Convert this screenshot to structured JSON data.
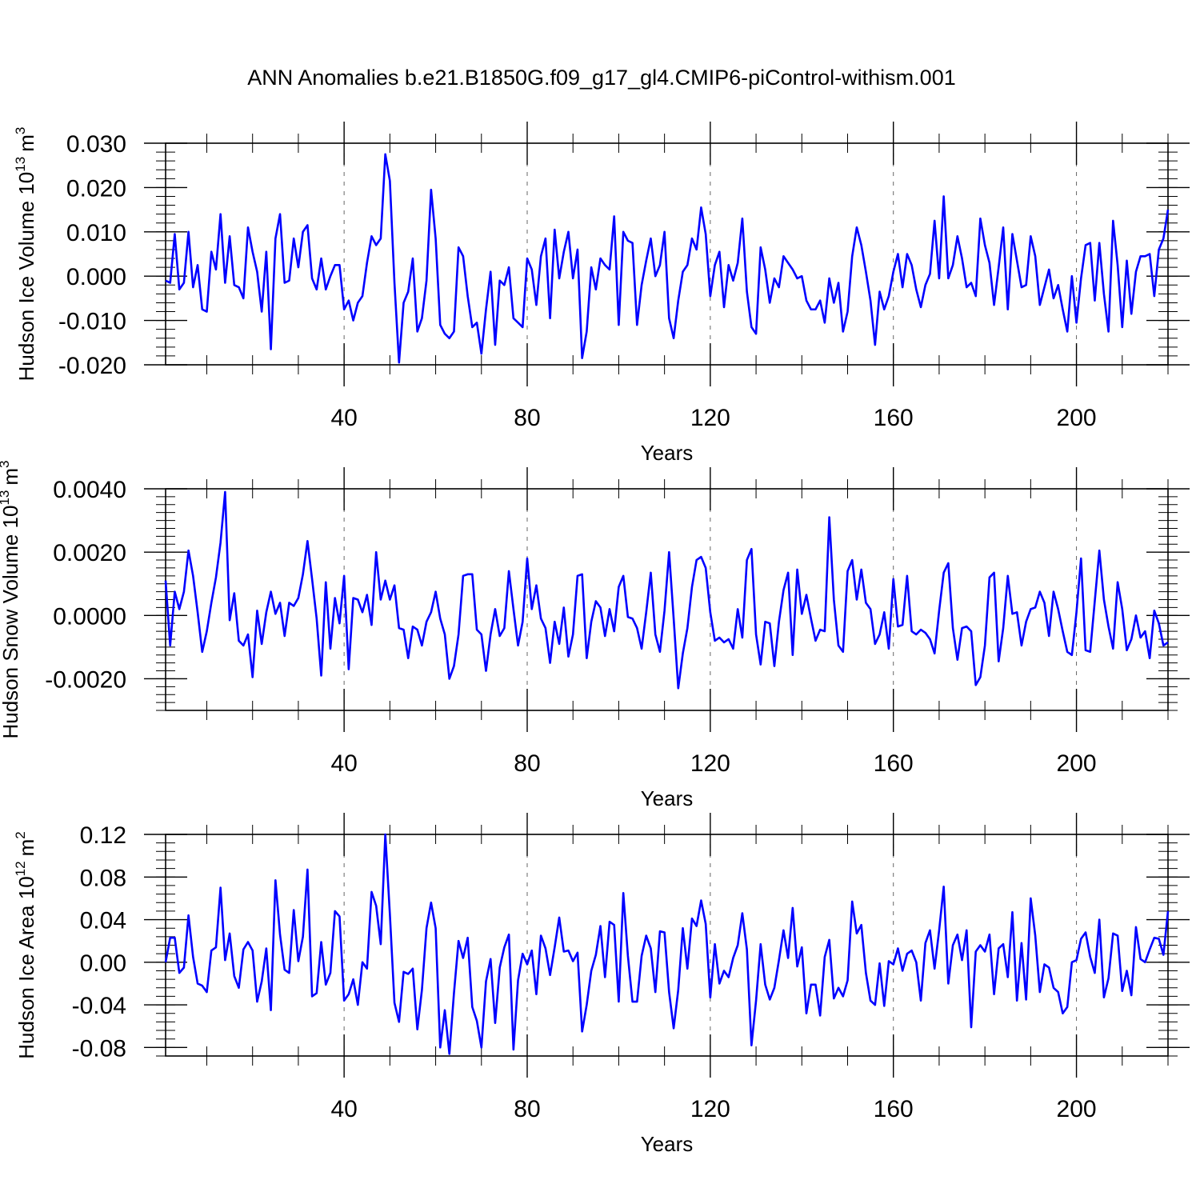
{
  "title": "ANN Anomalies b.e21.B1850G.f09_g17_gl4.CMIP6-piControl-withism.001",
  "line_color": "#0000ff",
  "chart_data": [
    {
      "type": "line",
      "ylabel_main": "Hudson Ice Volume 10",
      "ylabel_exp": "13",
      "ylabel_unit": "m",
      "ylabel_unit_exp": "3",
      "xlabel": "Years",
      "xlim": [
        1,
        220
      ],
      "ylim": [
        -0.02,
        0.03
      ],
      "yticks": [
        -0.02,
        -0.01,
        0.0,
        0.01,
        0.02,
        0.03
      ],
      "ytick_labels": [
        "-0.020",
        "-0.010",
        "0.000",
        "0.010",
        "0.020",
        "0.030"
      ],
      "yminor": 0.002,
      "xticks": [
        40,
        80,
        120,
        160,
        200
      ],
      "xtick_labels": [
        "40",
        "80",
        "120",
        "160",
        "200"
      ],
      "x_start": 1,
      "values": [
        -0.001,
        -0.0015,
        0.0095,
        -0.003,
        -0.0015,
        0.01,
        -0.0025,
        0.0025,
        -0.0075,
        -0.008,
        0.0055,
        0.0015,
        0.014,
        -0.0015,
        0.009,
        -0.002,
        -0.0025,
        -0.005,
        0.011,
        0.0055,
        0.001,
        -0.008,
        0.0055,
        -0.0165,
        0.0085,
        0.014,
        -0.0015,
        -0.001,
        0.0085,
        0.002,
        0.01,
        0.0115,
        -0.0005,
        -0.003,
        0.004,
        -0.003,
        0.0,
        0.0025,
        0.0025,
        -0.0075,
        -0.0055,
        -0.01,
        -0.006,
        -0.0045,
        0.003,
        0.009,
        0.007,
        0.0085,
        0.0275,
        0.0215,
        -0.0015,
        -0.0195,
        -0.006,
        -0.0035,
        0.004,
        -0.0125,
        -0.0095,
        -0.001,
        0.0195,
        0.0085,
        -0.011,
        -0.013,
        -0.014,
        -0.0125,
        0.0065,
        0.0045,
        -0.0045,
        -0.0115,
        -0.0105,
        -0.0175,
        -0.0075,
        0.001,
        -0.0155,
        -0.001,
        -0.002,
        0.002,
        -0.0095,
        -0.0105,
        -0.0115,
        0.004,
        0.0015,
        -0.0065,
        0.0045,
        0.0085,
        -0.0095,
        0.0105,
        -0.0005,
        0.0055,
        0.01,
        -0.0005,
        0.006,
        -0.0185,
        -0.0125,
        0.002,
        -0.003,
        0.004,
        0.0025,
        0.0015,
        0.0135,
        -0.011,
        0.01,
        0.008,
        0.0075,
        -0.011,
        -0.002,
        0.0035,
        0.0085,
        0.0,
        0.0025,
        0.01,
        -0.0095,
        -0.014,
        -0.0055,
        0.001,
        0.0025,
        0.0085,
        0.006,
        0.0155,
        0.0095,
        -0.0045,
        0.0025,
        0.0055,
        -0.007,
        0.0025,
        -0.001,
        0.003,
        0.013,
        -0.0035,
        -0.0115,
        -0.013,
        0.0065,
        0.0015,
        -0.006,
        -0.0005,
        -0.0025,
        0.0045,
        0.003,
        0.0015,
        -0.0005,
        0.0,
        -0.0055,
        -0.0075,
        -0.0075,
        -0.0055,
        -0.0105,
        -0.0005,
        -0.006,
        -0.0015,
        -0.0125,
        -0.008,
        0.0045,
        0.011,
        0.007,
        0.001,
        -0.0055,
        -0.0155,
        -0.0035,
        -0.0075,
        -0.0045,
        0.001,
        0.005,
        -0.0025,
        0.005,
        0.0025,
        -0.003,
        -0.007,
        -0.002,
        0.0005,
        0.0125,
        -0.0005,
        0.018,
        -0.0005,
        0.0025,
        0.009,
        0.004,
        -0.0025,
        -0.0015,
        -0.0045,
        0.013,
        0.007,
        0.003,
        -0.0065,
        0.002,
        0.011,
        -0.0075,
        0.0095,
        0.0035,
        -0.0025,
        -0.002,
        0.009,
        0.0045,
        -0.0065,
        -0.0025,
        0.0015,
        -0.005,
        -0.002,
        -0.0075,
        -0.0125,
        0.0,
        -0.0105,
        -0.0005,
        0.007,
        0.0075,
        -0.0055,
        0.0075,
        -0.004,
        -0.0125,
        0.0125,
        0.0025,
        -0.0115,
        0.0035,
        -0.0085,
        0.001,
        0.0045,
        0.0045,
        0.005,
        -0.0045,
        0.006,
        0.0085,
        0.015
      ]
    },
    {
      "type": "line",
      "ylabel_main": "Hudson Snow Volume 10",
      "ylabel_exp": "13",
      "ylabel_unit": "m",
      "ylabel_unit_exp": "3",
      "xlabel": "Years",
      "xlim": [
        1,
        220
      ],
      "ylim": [
        -0.003,
        0.004
      ],
      "yticks": [
        -0.002,
        0.0,
        0.002,
        0.004
      ],
      "ytick_labels": [
        "-0.0020",
        "0.0000",
        "0.0020",
        "0.0040"
      ],
      "yminor": 0.00025,
      "xticks": [
        40,
        80,
        120,
        160,
        200
      ],
      "xtick_labels": [
        "40",
        "80",
        "120",
        "160",
        "200"
      ],
      "x_start": 1,
      "values": [
        0.0011,
        -0.00095,
        0.00075,
        0.0002,
        0.00075,
        0.00205,
        0.00125,
        0.0001,
        -0.00115,
        -0.0005,
        0.0004,
        0.0012,
        0.0023,
        0.0039,
        -0.00015,
        0.0007,
        -0.0008,
        -0.00095,
        -0.0006,
        -0.00195,
        0.00015,
        -0.0009,
        0.0001,
        0.00075,
        5e-05,
        0.0004,
        -0.00065,
        0.0004,
        0.0003,
        0.00055,
        0.0013,
        0.00235,
        0.00115,
        -0.0001,
        -0.0019,
        0.00105,
        -0.00105,
        0.00055,
        -0.00025,
        0.00125,
        -0.0017,
        0.00055,
        0.0005,
        0.0001,
        0.00065,
        -0.0003,
        0.002,
        0.0005,
        0.0011,
        0.0005,
        0.00095,
        -0.0004,
        -0.00045,
        -0.00135,
        -0.00035,
        -0.00045,
        -0.00095,
        -0.0002,
        0.0001,
        0.00075,
        -0.0001,
        -0.0006,
        -0.002,
        -0.0016,
        -0.0006,
        0.00125,
        0.0013,
        0.0013,
        -0.00045,
        -0.0006,
        -0.00175,
        -0.0006,
        0.0002,
        -0.00065,
        -0.0004,
        0.0014,
        0.0002,
        -0.00095,
        -0.0002,
        0.0018,
        0.0002,
        0.00095,
        -0.0001,
        -0.0004,
        -0.0015,
        -0.0002,
        -0.0009,
        0.00025,
        -0.0013,
        -0.0006,
        0.00125,
        0.0013,
        -0.00135,
        -0.0002,
        0.00045,
        0.00025,
        -0.00065,
        0.0002,
        -0.0005,
        0.0009,
        0.00125,
        -5e-05,
        -0.0001,
        -0.0004,
        -0.00105,
        0.0001,
        0.00135,
        -0.0006,
        -0.00115,
        0.00015,
        0.002,
        -0.0001,
        -0.0023,
        -0.0012,
        -0.0004,
        0.0009,
        0.00175,
        0.00185,
        0.0015,
        0.0001,
        -0.0008,
        -0.0007,
        -0.00085,
        -0.00075,
        -0.00105,
        0.0002,
        -0.0007,
        0.00175,
        0.0021,
        -0.0006,
        -0.00155,
        -0.0002,
        -0.00025,
        -0.0016,
        -0.0002,
        0.0008,
        0.00135,
        -0.00125,
        0.00145,
        5e-05,
        0.00065,
        -0.0001,
        -0.0008,
        -0.00045,
        -0.0005,
        0.0031,
        0.0005,
        -0.00095,
        -0.00115,
        0.0014,
        0.00175,
        0.0005,
        0.00145,
        0.0004,
        0.0002,
        -0.0009,
        -0.0006,
        0.0001,
        -0.00105,
        0.00115,
        -0.00035,
        -0.0003,
        0.00125,
        -0.0005,
        -0.0006,
        -0.00045,
        -0.00055,
        -0.00075,
        -0.0012,
        0.00015,
        0.00135,
        0.00165,
        -0.0004,
        -0.0014,
        -0.0004,
        -0.00035,
        -0.0005,
        -0.0022,
        -0.00195,
        -0.00095,
        0.0012,
        0.00135,
        -0.00145,
        -0.0004,
        0.00125,
        5e-05,
        0.0001,
        -0.00095,
        -0.0002,
        0.0002,
        0.00025,
        0.00075,
        0.0004,
        -0.00065,
        0.00075,
        0.0002,
        -0.0005,
        -0.00115,
        -0.00125,
        0.0001,
        0.0018,
        -0.0011,
        -0.00115,
        0.00045,
        0.00205,
        0.0005,
        -0.00035,
        -0.00105,
        0.00105,
        0.0002,
        -0.0011,
        -0.00075,
        0.0,
        -0.0007,
        -0.0005,
        -0.00135,
        0.00015,
        -0.00025,
        -0.00095,
        -0.00085
      ]
    },
    {
      "type": "line",
      "ylabel_main": "Hudson Ice Area 10",
      "ylabel_exp": "12",
      "ylabel_unit": "m",
      "ylabel_unit_exp": "2",
      "xlabel": "Years",
      "xlim": [
        1,
        220
      ],
      "ylim": [
        -0.088,
        0.12
      ],
      "yticks": [
        -0.08,
        -0.04,
        0.0,
        0.04,
        0.08,
        0.12
      ],
      "ytick_labels": [
        "-0.08",
        "-0.04",
        "0.00",
        "0.04",
        "0.08",
        "0.12"
      ],
      "yminor": 0.008,
      "xticks": [
        40,
        80,
        120,
        160,
        200
      ],
      "xtick_labels": [
        "40",
        "80",
        "120",
        "160",
        "200"
      ],
      "x_start": 1,
      "values": [
        0.0,
        0.023,
        0.023,
        -0.01,
        -0.005,
        0.044,
        0.005,
        -0.02,
        -0.022,
        -0.028,
        0.011,
        0.014,
        0.07,
        0.002,
        0.027,
        -0.013,
        -0.024,
        0.012,
        0.019,
        0.011,
        -0.037,
        -0.018,
        0.013,
        -0.045,
        0.077,
        0.026,
        -0.007,
        -0.01,
        0.049,
        0.001,
        0.024,
        0.087,
        -0.032,
        -0.029,
        0.019,
        -0.021,
        -0.01,
        0.048,
        0.043,
        -0.036,
        -0.03,
        -0.016,
        -0.04,
        0.0,
        -0.006,
        0.066,
        0.053,
        0.017,
        0.12,
        0.045,
        -0.038,
        -0.056,
        -0.009,
        -0.011,
        -0.006,
        -0.063,
        -0.026,
        0.032,
        0.056,
        0.032,
        -0.08,
        -0.045,
        -0.086,
        -0.029,
        0.02,
        0.004,
        0.023,
        -0.042,
        -0.055,
        -0.08,
        -0.018,
        0.003,
        -0.057,
        -0.005,
        0.014,
        0.026,
        -0.082,
        -0.017,
        0.008,
        -0.002,
        0.011,
        -0.03,
        0.025,
        0.013,
        -0.012,
        0.014,
        0.042,
        0.01,
        0.011,
        0.001,
        0.009,
        -0.065,
        -0.04,
        -0.008,
        0.007,
        0.034,
        -0.014,
        0.038,
        0.035,
        -0.037,
        0.065,
        0.006,
        -0.037,
        -0.037,
        0.006,
        0.025,
        0.013,
        -0.028,
        0.029,
        0.028,
        -0.028,
        -0.062,
        -0.026,
        0.032,
        -0.006,
        0.041,
        0.034,
        0.058,
        0.036,
        -0.033,
        0.017,
        -0.02,
        -0.008,
        -0.014,
        0.004,
        0.016,
        0.046,
        0.012,
        -0.078,
        -0.036,
        0.017,
        -0.021,
        -0.035,
        -0.024,
        0.002,
        0.03,
        0.004,
        0.051,
        -0.004,
        0.014,
        -0.048,
        -0.021,
        -0.021,
        -0.05,
        0.005,
        0.021,
        -0.034,
        -0.024,
        -0.032,
        -0.017,
        0.057,
        0.027,
        0.035,
        -0.01,
        -0.036,
        -0.04,
        -0.001,
        -0.041,
        0.001,
        -0.002,
        0.013,
        -0.008,
        0.008,
        0.011,
        0.0,
        -0.036,
        0.018,
        0.03,
        -0.006,
        0.03,
        0.071,
        -0.02,
        0.016,
        0.026,
        0.002,
        0.03,
        -0.061,
        0.01,
        0.016,
        0.01,
        0.026,
        -0.03,
        0.013,
        0.017,
        -0.014,
        0.047,
        -0.036,
        0.018,
        -0.035,
        0.06,
        0.025,
        -0.028,
        -0.002,
        -0.005,
        -0.024,
        -0.028,
        -0.048,
        -0.042,
        0.0,
        0.002,
        0.022,
        0.028,
        0.005,
        -0.01,
        0.04,
        -0.033,
        -0.015,
        0.027,
        0.025,
        -0.027,
        -0.008,
        -0.031,
        0.033,
        0.003,
        0.0,
        0.012,
        0.023,
        0.022,
        0.007,
        0.048
      ]
    }
  ]
}
